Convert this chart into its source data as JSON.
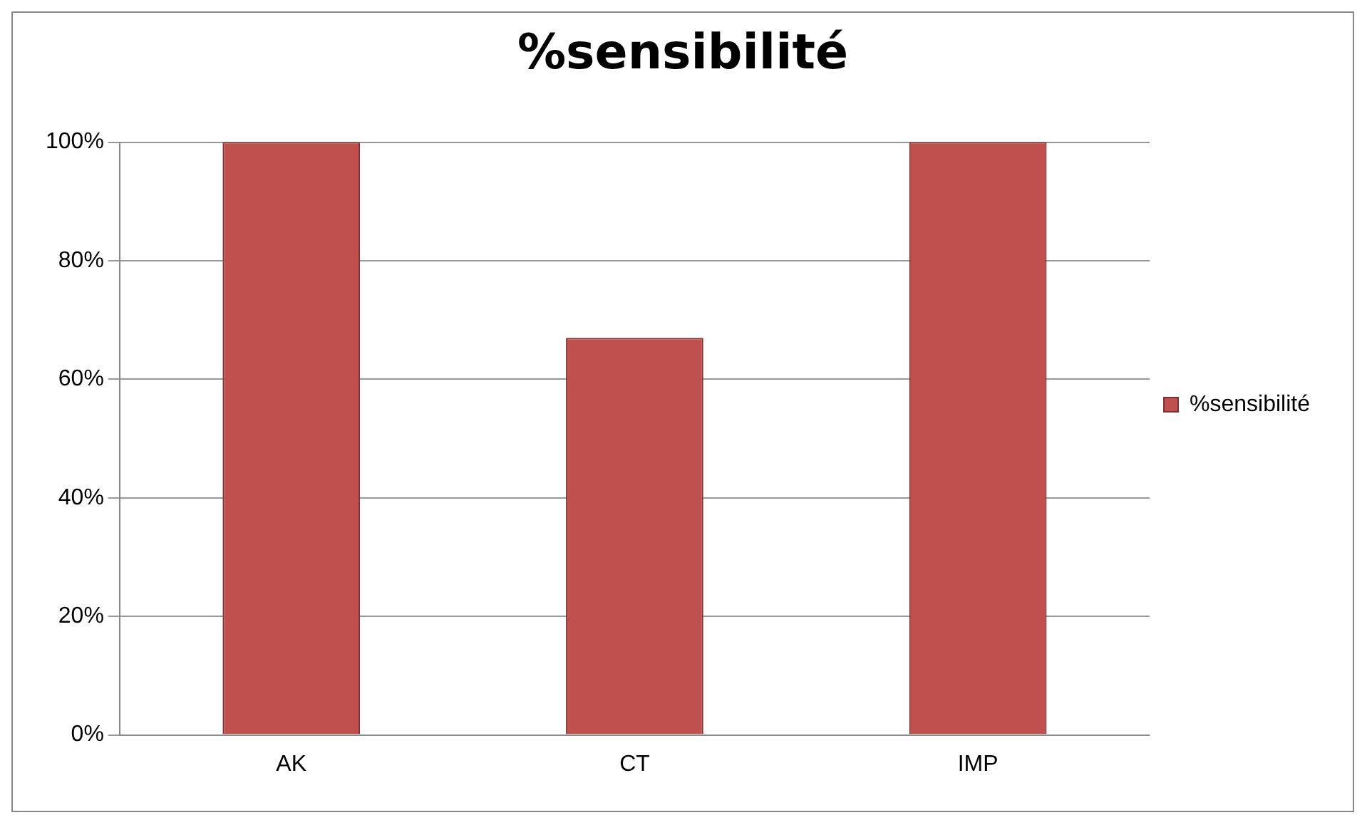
{
  "chart_data": {
    "type": "bar",
    "title": "%sensibilité",
    "categories": [
      "AK",
      "CT",
      "IMP"
    ],
    "series": [
      {
        "name": "%sensibilité",
        "color": "#c0504d",
        "values": [
          100,
          67,
          100
        ]
      }
    ],
    "ylim": [
      0,
      100
    ],
    "yticks": [
      {
        "value": 0,
        "label": "0%"
      },
      {
        "value": 20,
        "label": "20%"
      },
      {
        "value": 40,
        "label": "40%"
      },
      {
        "value": 60,
        "label": "60%"
      },
      {
        "value": 80,
        "label": "80%"
      },
      {
        "value": 100,
        "label": "100%"
      }
    ],
    "grid": "y",
    "legend": "right"
  }
}
